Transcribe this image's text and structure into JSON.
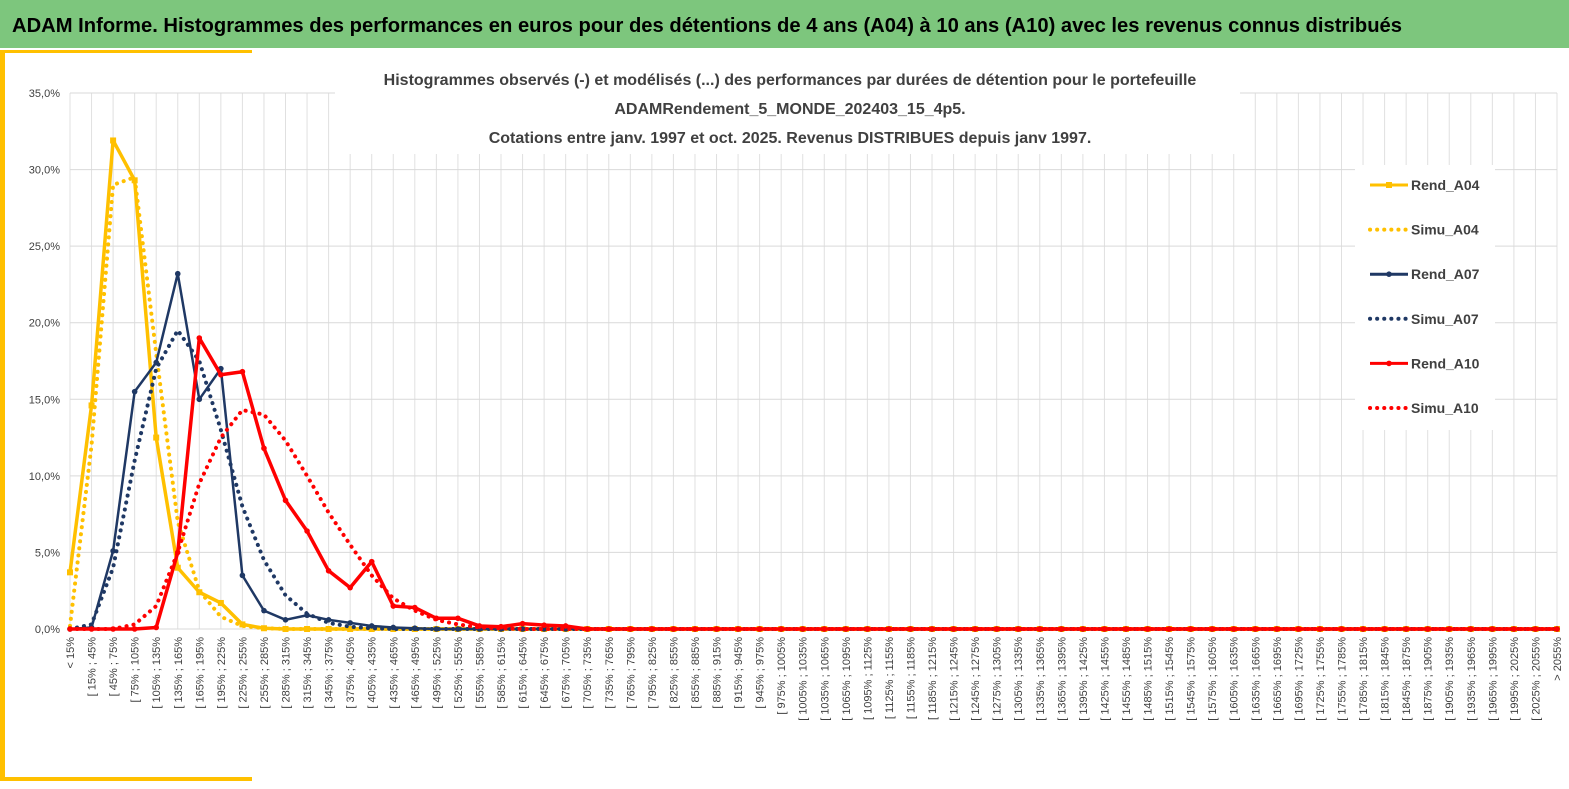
{
  "banner": {
    "title": "ADAM Informe. Histogrammes des performances en euros pour des détentions de 4 ans (A04) à 10 ans (A10) avec les revenus connus distribués"
  },
  "chart_data": {
    "type": "line",
    "title": [
      "Histogrammes observés (-) et modélisés (...) des performances par durées de détention pour le portefeuille",
      "ADAMRendement_5_MONDE_202403_15_4p5.",
      "Cotations entre janv. 1997 et oct. 2025. Revenus DISTRIBUES depuis janv 1997."
    ],
    "categories": [
      "< 15%",
      "[ 15% ; 45%",
      "[ 45% ; 75%",
      "[ 75% ; 105%",
      "[ 105% ; 135%",
      "[ 135% ; 165%",
      "[ 165% ; 195%",
      "[ 195% ; 225%",
      "[ 225% ; 255%",
      "[ 255% ; 285%",
      "[ 285% ; 315%",
      "[ 315% ; 345%",
      "[ 345% ; 375%",
      "[ 375% ; 405%",
      "[ 405% ; 435%",
      "[ 435% ; 465%",
      "[ 465% ; 495%",
      "[ 495% ; 525%",
      "[ 525% ; 555%",
      "[ 555% ; 585%",
      "[ 585% ; 615%",
      "[ 615% ; 645%",
      "[ 645% ; 675%",
      "[ 675% ; 705%",
      "[ 705% ; 735%",
      "[ 735% ; 765%",
      "[ 765% ; 795%",
      "[ 795% ; 825%",
      "[ 825% ; 855%",
      "[ 855% ; 885%",
      "[ 885% ; 915%",
      "[ 915% ; 945%",
      "[ 945% ; 975%",
      "[ 975% ; 1005%",
      "[ 1005% ; 1035%",
      "[ 1035% ; 1065%",
      "[ 1065% ; 1095%",
      "[ 1095% ; 1125%",
      "[ 1125% ; 1155%",
      "[ 1155% ; 1185%",
      "[ 1185% ; 1215%",
      "[ 1215% ; 1245%",
      "[ 1245% ; 1275%",
      "[ 1275% ; 1305%",
      "[ 1305% ; 1335%",
      "[ 1335% ; 1365%",
      "[ 1365% ; 1395%",
      "[ 1395% ; 1425%",
      "[ 1425% ; 1455%",
      "[ 1455% ; 1485%",
      "[ 1485% ; 1515%",
      "[ 1515% ; 1545%",
      "[ 1545% ; 1575%",
      "[ 1575% ; 1605%",
      "[ 1605% ; 1635%",
      "[ 1635% ; 1665%",
      "[ 1665% ; 1695%",
      "[ 1695% ; 1725%",
      "[ 1725% ; 1755%",
      "[ 1755% ; 1785%",
      "[ 1785% ; 1815%",
      "[ 1815% ; 1845%",
      "[ 1845% ; 1875%",
      "[ 1875% ; 1905%",
      "[ 1905% ; 1935%",
      "[ 1935% ; 1965%",
      "[ 1965% ; 1995%",
      "[ 1995% ; 2025%",
      "[ 2025% ; 2055%",
      "> 2055%"
    ],
    "series": [
      {
        "name": "Rend_A04",
        "color": "#ffc000",
        "style": "solid",
        "marker": "square",
        "values": [
          3.7,
          14.6,
          31.9,
          29.3,
          12.5,
          4.0,
          2.4,
          1.7,
          0.3,
          0.05,
          0,
          0,
          0,
          0,
          0,
          0,
          0,
          0,
          0,
          0,
          0,
          0,
          0,
          0,
          0,
          0,
          0,
          0,
          0,
          0,
          0,
          0,
          0,
          0,
          0,
          0,
          0,
          0,
          0,
          0,
          0,
          0,
          0,
          0,
          0,
          0,
          0,
          0,
          0,
          0,
          0,
          0,
          0,
          0,
          0,
          0,
          0,
          0,
          0,
          0,
          0,
          0,
          0,
          0,
          0,
          0,
          0,
          0,
          0,
          0
        ]
      },
      {
        "name": "Simu_A04",
        "color": "#ffc000",
        "style": "dotted",
        "values": [
          0.2,
          12,
          29,
          29.5,
          18,
          7,
          2.5,
          0.8,
          0.2,
          0.05,
          0,
          0,
          0,
          0,
          0,
          0,
          0,
          0,
          0,
          0,
          0,
          0,
          0,
          0,
          0,
          0,
          0,
          0,
          0,
          0,
          0,
          0,
          0,
          0,
          0,
          0,
          0,
          0,
          0,
          0,
          0,
          0,
          0,
          0,
          0,
          0,
          0,
          0,
          0,
          0,
          0,
          0,
          0,
          0,
          0,
          0,
          0,
          0,
          0,
          0,
          0,
          0,
          0,
          0,
          0,
          0,
          0,
          0,
          0,
          0
        ]
      },
      {
        "name": "Rend_A07",
        "color": "#1f3864",
        "style": "solid",
        "marker": "circle",
        "values": [
          0,
          0.1,
          5.1,
          15.5,
          17.4,
          23.2,
          15.0,
          17.0,
          3.5,
          1.2,
          0.6,
          0.9,
          0.6,
          0.4,
          0.2,
          0.1,
          0.05,
          0,
          0,
          0,
          0,
          0,
          0,
          0,
          0,
          0,
          0,
          0,
          0,
          0,
          0,
          0,
          0,
          0,
          0,
          0,
          0,
          0,
          0,
          0,
          0,
          0,
          0,
          0,
          0,
          0,
          0,
          0,
          0,
          0,
          0,
          0,
          0,
          0,
          0,
          0,
          0,
          0,
          0,
          0,
          0,
          0,
          0,
          0,
          0,
          0,
          0,
          0,
          0,
          0
        ]
      },
      {
        "name": "Simu_A07",
        "color": "#1f3864",
        "style": "dotted",
        "values": [
          0,
          0.3,
          4,
          11,
          17,
          19.5,
          17.5,
          13,
          8,
          4.5,
          2.2,
          1,
          0.4,
          0.15,
          0.05,
          0,
          0,
          0,
          0,
          0,
          0,
          0,
          0,
          0,
          0,
          0,
          0,
          0,
          0,
          0,
          0,
          0,
          0,
          0,
          0,
          0,
          0,
          0,
          0,
          0,
          0,
          0,
          0,
          0,
          0,
          0,
          0,
          0,
          0,
          0,
          0,
          0,
          0,
          0,
          0,
          0,
          0,
          0,
          0,
          0,
          0,
          0,
          0,
          0,
          0,
          0,
          0,
          0,
          0,
          0
        ]
      },
      {
        "name": "Rend_A10",
        "color": "#ff0000",
        "style": "solid",
        "marker": "circle",
        "values": [
          0,
          0,
          0,
          0,
          0.1,
          5,
          19,
          16.6,
          16.8,
          11.8,
          8.4,
          6.4,
          3.8,
          2.7,
          4.4,
          1.5,
          1.4,
          0.7,
          0.7,
          0.2,
          0.15,
          0.35,
          0.25,
          0.2,
          0,
          0,
          0,
          0,
          0,
          0,
          0,
          0,
          0,
          0,
          0,
          0,
          0,
          0,
          0,
          0,
          0,
          0,
          0,
          0,
          0,
          0,
          0,
          0,
          0,
          0,
          0,
          0,
          0,
          0,
          0,
          0,
          0,
          0,
          0,
          0,
          0,
          0,
          0,
          0,
          0,
          0,
          0,
          0,
          0,
          0
        ]
      },
      {
        "name": "Simu_A10",
        "color": "#ff0000",
        "style": "dotted",
        "values": [
          0,
          0,
          0,
          0.3,
          1.5,
          5,
          9.5,
          12.5,
          14.3,
          14,
          12.3,
          10,
          7.6,
          5.5,
          3.5,
          2,
          1.2,
          0.6,
          0.3,
          0.1,
          0.05,
          0,
          0,
          0,
          0,
          0,
          0,
          0,
          0,
          0,
          0,
          0,
          0,
          0,
          0,
          0,
          0,
          0,
          0,
          0,
          0,
          0,
          0,
          0,
          0,
          0,
          0,
          0,
          0,
          0,
          0,
          0,
          0,
          0,
          0,
          0,
          0,
          0,
          0,
          0,
          0,
          0,
          0,
          0,
          0,
          0,
          0,
          0,
          0,
          0
        ]
      }
    ],
    "ylim": [
      0,
      35
    ],
    "yticks": [
      {
        "value": 0,
        "label": "0,0%"
      },
      {
        "value": 5,
        "label": "5,0%"
      },
      {
        "value": 10,
        "label": "10,0%"
      },
      {
        "value": 15,
        "label": "15,0%"
      },
      {
        "value": 20,
        "label": "20,0%"
      },
      {
        "value": 25,
        "label": "25,0%"
      },
      {
        "value": 30,
        "label": "30,0%"
      },
      {
        "value": 35,
        "label": "35,0%"
      }
    ],
    "grid": true,
    "legend": "right"
  }
}
